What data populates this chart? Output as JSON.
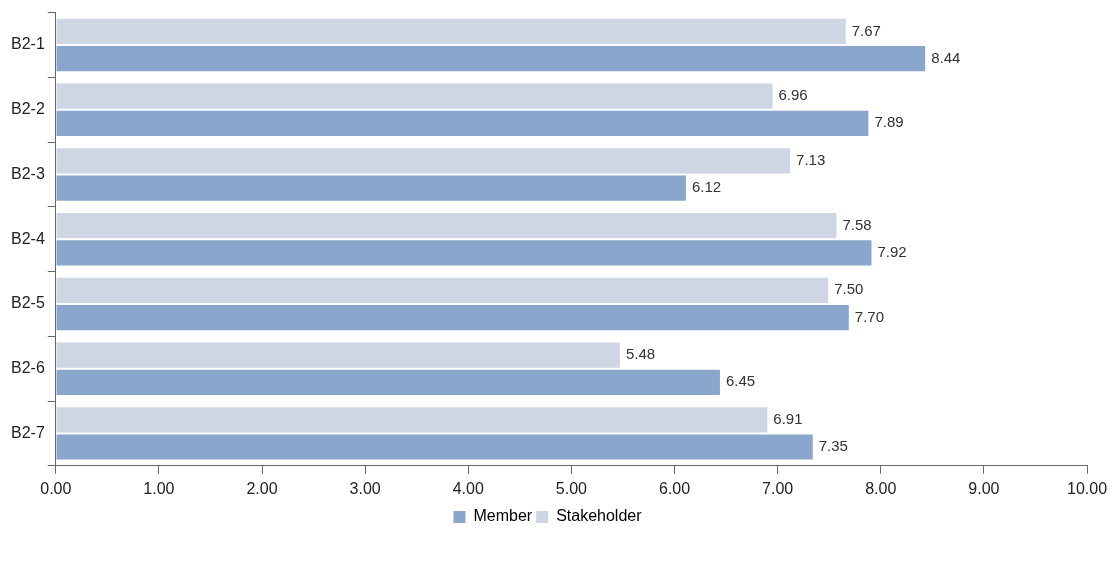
{
  "chart_data": {
    "type": "bar",
    "orientation": "horizontal",
    "categories": [
      "B2-1",
      "B2-2",
      "B2-3",
      "B2-4",
      "B2-5",
      "B2-6",
      "B2-7"
    ],
    "series": [
      {
        "name": "Stakeholder",
        "color": "#cdd6e2",
        "values": [
          7.67,
          6.96,
          7.13,
          7.58,
          7.5,
          5.48,
          6.91
        ],
        "value_labels": [
          "7.67",
          "6.96",
          "7.13",
          "7.58",
          "7.50",
          "5.48",
          "6.91"
        ]
      },
      {
        "name": "Member",
        "color": "#8aa6cc",
        "values": [
          8.44,
          7.89,
          6.12,
          7.92,
          7.7,
          6.45,
          7.35
        ],
        "value_labels": [
          "8.44",
          "7.89",
          "6.12",
          "7.92",
          "7.70",
          "6.45",
          "7.35"
        ]
      }
    ],
    "xlim": [
      0,
      10
    ],
    "xticks": [
      {
        "value": 0,
        "label": "0.00"
      },
      {
        "value": 1,
        "label": "1.00"
      },
      {
        "value": 2,
        "label": "2.00"
      },
      {
        "value": 3,
        "label": "3.00"
      },
      {
        "value": 4,
        "label": "4.00"
      },
      {
        "value": 5,
        "label": "5.00"
      },
      {
        "value": 6,
        "label": "6.00"
      },
      {
        "value": 7,
        "label": "7.00"
      },
      {
        "value": 8,
        "label": "8.00"
      },
      {
        "value": 9,
        "label": "9.00"
      },
      {
        "value": 10,
        "label": "10.00"
      }
    ],
    "grid": false,
    "legend": "bottom"
  }
}
